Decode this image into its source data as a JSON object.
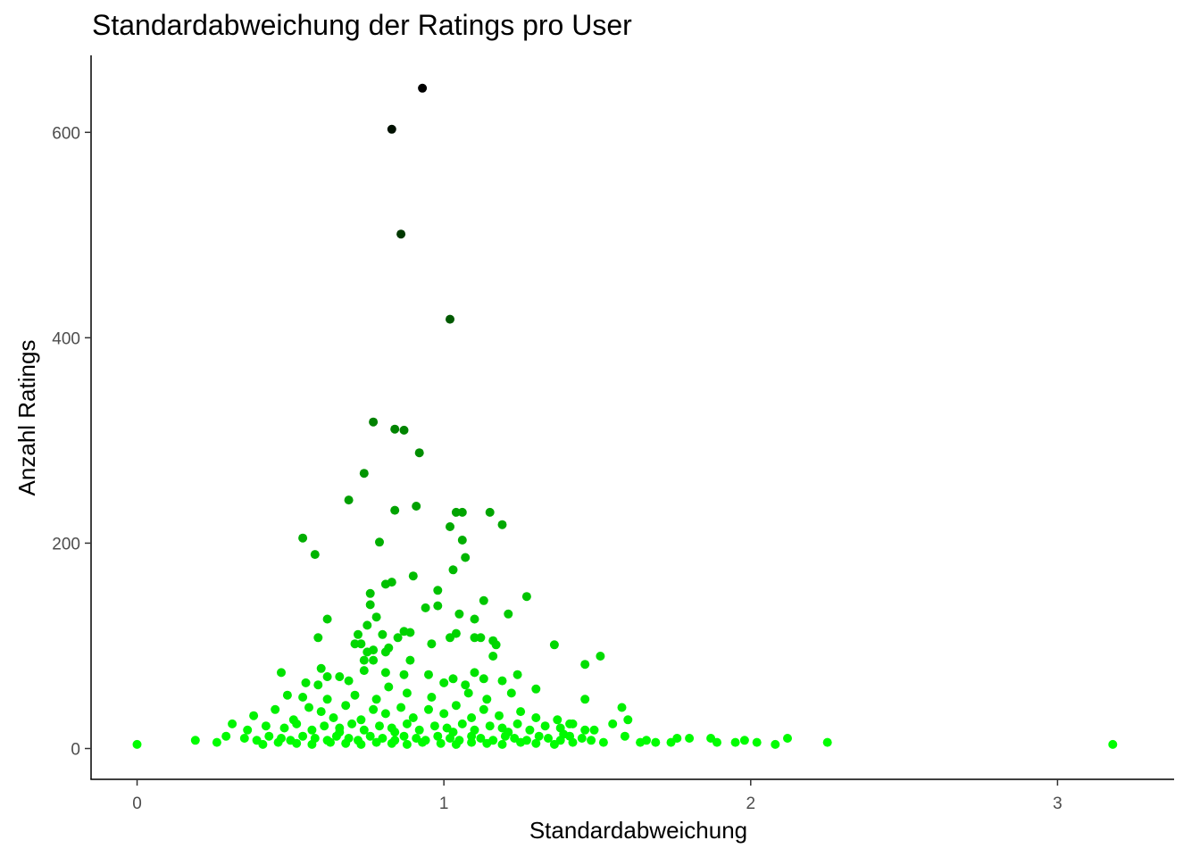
{
  "chart_data": {
    "type": "scatter",
    "title": "Standardabweichung der Ratings pro User",
    "xlabel": "Standardabweichung",
    "ylabel": "Anzahl Ratings",
    "xlim": [
      -0.15,
      3.38
    ],
    "ylim": [
      -30,
      675
    ],
    "xticks": [
      0,
      1,
      2,
      3
    ],
    "yticks": [
      0,
      200,
      400,
      600
    ],
    "grid": false,
    "legend": "none",
    "color_scale": {
      "low": "#00ff00",
      "high": "#000000",
      "by": "y"
    },
    "points": [
      [
        0.93,
        643
      ],
      [
        0.83,
        603
      ],
      [
        0.86,
        501
      ],
      [
        1.02,
        418
      ],
      [
        0.77,
        318
      ],
      [
        0.84,
        311
      ],
      [
        0.87,
        310
      ],
      [
        0.92,
        288
      ],
      [
        0.74,
        268
      ],
      [
        0.69,
        242
      ],
      [
        0.84,
        232
      ],
      [
        0.91,
        236
      ],
      [
        1.04,
        230
      ],
      [
        1.06,
        230
      ],
      [
        1.15,
        230
      ],
      [
        1.19,
        218
      ],
      [
        1.02,
        216
      ],
      [
        0.54,
        205
      ],
      [
        0.79,
        201
      ],
      [
        1.06,
        203
      ],
      [
        0.58,
        189
      ],
      [
        1.07,
        186
      ],
      [
        1.03,
        174
      ],
      [
        0.9,
        168
      ],
      [
        0.83,
        162
      ],
      [
        0.81,
        160
      ],
      [
        0.98,
        154
      ],
      [
        0.76,
        151
      ],
      [
        1.27,
        148
      ],
      [
        1.13,
        144
      ],
      [
        0.98,
        139
      ],
      [
        0.94,
        137
      ],
      [
        0.76,
        140
      ],
      [
        1.21,
        131
      ],
      [
        1.05,
        131
      ],
      [
        0.62,
        126
      ],
      [
        0.78,
        128
      ],
      [
        1.1,
        126
      ],
      [
        0.75,
        120
      ],
      [
        0.72,
        111
      ],
      [
        0.87,
        114
      ],
      [
        0.89,
        113
      ],
      [
        0.85,
        108
      ],
      [
        0.59,
        108
      ],
      [
        0.8,
        111
      ],
      [
        1.04,
        112
      ],
      [
        1.02,
        108
      ],
      [
        1.1,
        108
      ],
      [
        1.12,
        108
      ],
      [
        1.16,
        105
      ],
      [
        1.17,
        101
      ],
      [
        1.36,
        101
      ],
      [
        0.73,
        102
      ],
      [
        0.71,
        102
      ],
      [
        0.96,
        102
      ],
      [
        0.82,
        98
      ],
      [
        0.75,
        94
      ],
      [
        0.81,
        94
      ],
      [
        0.77,
        96
      ],
      [
        1.16,
        90
      ],
      [
        1.51,
        90
      ],
      [
        0.74,
        86
      ],
      [
        0.77,
        86
      ],
      [
        0.89,
        86
      ],
      [
        1.46,
        82
      ],
      [
        0.47,
        74
      ],
      [
        0.6,
        78
      ],
      [
        0.62,
        70
      ],
      [
        0.66,
        70
      ],
      [
        0.74,
        76
      ],
      [
        0.81,
        74
      ],
      [
        0.87,
        72
      ],
      [
        0.95,
        72
      ],
      [
        1.1,
        74
      ],
      [
        1.24,
        72
      ],
      [
        0.55,
        64
      ],
      [
        0.59,
        62
      ],
      [
        0.69,
        66
      ],
      [
        0.82,
        60
      ],
      [
        1.0,
        64
      ],
      [
        1.03,
        68
      ],
      [
        1.07,
        62
      ],
      [
        1.13,
        68
      ],
      [
        1.19,
        66
      ],
      [
        1.3,
        58
      ],
      [
        0.49,
        52
      ],
      [
        0.54,
        50
      ],
      [
        0.62,
        48
      ],
      [
        0.71,
        52
      ],
      [
        0.78,
        48
      ],
      [
        0.88,
        54
      ],
      [
        0.96,
        50
      ],
      [
        1.08,
        54
      ],
      [
        1.14,
        48
      ],
      [
        1.22,
        54
      ],
      [
        1.46,
        48
      ],
      [
        0.38,
        32
      ],
      [
        0.45,
        38
      ],
      [
        0.51,
        28
      ],
      [
        0.56,
        40
      ],
      [
        0.6,
        36
      ],
      [
        0.64,
        30
      ],
      [
        0.68,
        42
      ],
      [
        0.73,
        28
      ],
      [
        0.77,
        38
      ],
      [
        0.81,
        34
      ],
      [
        0.86,
        40
      ],
      [
        0.9,
        30
      ],
      [
        0.95,
        38
      ],
      [
        1.0,
        34
      ],
      [
        1.04,
        42
      ],
      [
        1.09,
        30
      ],
      [
        1.13,
        38
      ],
      [
        1.18,
        32
      ],
      [
        1.25,
        36
      ],
      [
        1.3,
        30
      ],
      [
        1.37,
        28
      ],
      [
        1.41,
        24
      ],
      [
        1.49,
        18
      ],
      [
        1.58,
        40
      ],
      [
        1.6,
        28
      ],
      [
        0.31,
        24
      ],
      [
        0.36,
        18
      ],
      [
        0.42,
        22
      ],
      [
        0.48,
        20
      ],
      [
        0.52,
        24
      ],
      [
        0.57,
        18
      ],
      [
        0.61,
        22
      ],
      [
        0.66,
        20
      ],
      [
        0.7,
        24
      ],
      [
        0.74,
        18
      ],
      [
        0.79,
        22
      ],
      [
        0.83,
        20
      ],
      [
        0.88,
        24
      ],
      [
        0.92,
        18
      ],
      [
        0.97,
        22
      ],
      [
        1.01,
        20
      ],
      [
        1.06,
        24
      ],
      [
        1.1,
        18
      ],
      [
        1.15,
        22
      ],
      [
        1.19,
        20
      ],
      [
        1.24,
        24
      ],
      [
        1.28,
        18
      ],
      [
        1.33,
        22
      ],
      [
        1.38,
        20
      ],
      [
        1.42,
        24
      ],
      [
        1.46,
        18
      ],
      [
        1.55,
        24
      ],
      [
        0.29,
        12
      ],
      [
        0.35,
        10
      ],
      [
        0.39,
        8
      ],
      [
        0.43,
        12
      ],
      [
        0.47,
        10
      ],
      [
        0.5,
        8
      ],
      [
        0.54,
        12
      ],
      [
        0.58,
        10
      ],
      [
        0.62,
        8
      ],
      [
        0.65,
        12
      ],
      [
        0.69,
        10
      ],
      [
        0.72,
        8
      ],
      [
        0.76,
        12
      ],
      [
        0.8,
        10
      ],
      [
        0.84,
        8
      ],
      [
        0.87,
        12
      ],
      [
        0.91,
        10
      ],
      [
        0.94,
        8
      ],
      [
        0.98,
        12
      ],
      [
        1.02,
        10
      ],
      [
        1.05,
        8
      ],
      [
        1.09,
        12
      ],
      [
        1.12,
        10
      ],
      [
        1.16,
        8
      ],
      [
        1.2,
        12
      ],
      [
        1.23,
        10
      ],
      [
        1.27,
        8
      ],
      [
        1.31,
        12
      ],
      [
        1.34,
        10
      ],
      [
        1.38,
        8
      ],
      [
        1.41,
        12
      ],
      [
        1.45,
        10
      ],
      [
        1.48,
        8
      ],
      [
        1.52,
        6
      ],
      [
        1.59,
        12
      ],
      [
        0.41,
        4
      ],
      [
        0.46,
        6
      ],
      [
        0.52,
        5
      ],
      [
        0.57,
        4
      ],
      [
        0.63,
        6
      ],
      [
        0.68,
        5
      ],
      [
        0.73,
        4
      ],
      [
        0.78,
        6
      ],
      [
        0.83,
        5
      ],
      [
        0.88,
        4
      ],
      [
        0.93,
        6
      ],
      [
        0.99,
        5
      ],
      [
        1.04,
        4
      ],
      [
        1.09,
        6
      ],
      [
        1.14,
        5
      ],
      [
        1.19,
        4
      ],
      [
        1.25,
        6
      ],
      [
        1.3,
        5
      ],
      [
        1.36,
        4
      ],
      [
        1.42,
        6
      ],
      [
        0.66,
        16
      ],
      [
        0.84,
        16
      ],
      [
        1.03,
        16
      ],
      [
        1.21,
        16
      ],
      [
        1.39,
        14
      ],
      [
        0.0,
        4
      ],
      [
        0.19,
        8
      ],
      [
        0.26,
        6
      ],
      [
        1.64,
        6
      ],
      [
        1.66,
        8
      ],
      [
        1.69,
        6
      ],
      [
        1.74,
        6
      ],
      [
        1.76,
        10
      ],
      [
        1.8,
        10
      ],
      [
        1.87,
        10
      ],
      [
        1.89,
        6
      ],
      [
        1.95,
        6
      ],
      [
        1.98,
        8
      ],
      [
        2.02,
        6
      ],
      [
        2.08,
        4
      ],
      [
        2.12,
        10
      ],
      [
        2.25,
        6
      ],
      [
        3.18,
        4
      ]
    ]
  }
}
